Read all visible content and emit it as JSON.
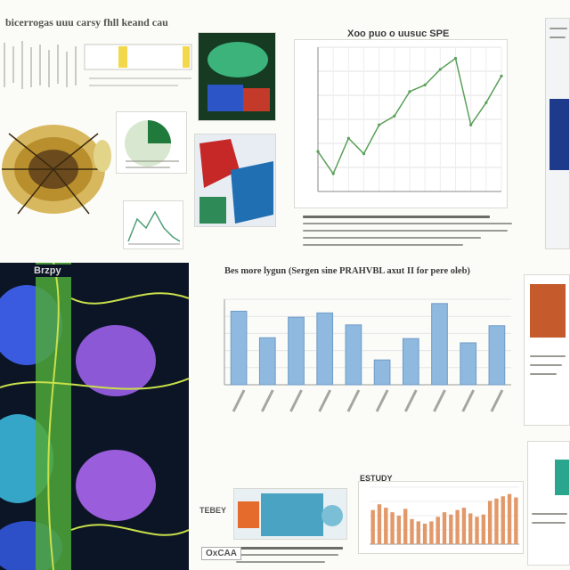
{
  "header": {
    "title": "bicerrogas uuu carsy fhll keand cau"
  },
  "top_right_chart": {
    "title": "Xoo puo o uusuc SPE",
    "chart_data": {
      "type": "line",
      "x": [
        1,
        2,
        3,
        4,
        5,
        6,
        7,
        8,
        9,
        10,
        11,
        12,
        13
      ],
      "values": [
        118,
        108,
        124,
        117,
        130,
        134,
        145,
        148,
        155,
        160,
        130,
        140,
        152
      ],
      "ylim": [
        100,
        165
      ],
      "grid": true,
      "color": "#5aa05a"
    }
  },
  "middle_chart": {
    "title": "Bes more lygun (Sergen sine PRAHVBL axut II for pere oleb)",
    "chart_data": {
      "type": "bar",
      "values": [
        86,
        55,
        79,
        84,
        70,
        29,
        54,
        95,
        49,
        69
      ],
      "ylim": [
        0,
        100
      ],
      "grid": true,
      "color": "#8fb9de"
    }
  },
  "bottom_chart": {
    "title": "ESTUDY",
    "chart_data": {
      "type": "bar",
      "values": [
        30,
        35,
        32,
        28,
        25,
        31,
        22,
        20,
        18,
        20,
        24,
        28,
        26,
        30,
        32,
        27,
        24,
        26,
        38,
        40,
        42,
        44,
        41
      ],
      "ylim": [
        0,
        50
      ],
      "grid": true,
      "color": "#e2996a"
    }
  },
  "labels": {
    "bottom_left": "OxCAA",
    "middle_left_hi": "Brzpy",
    "small_caption": "TEBEY"
  }
}
